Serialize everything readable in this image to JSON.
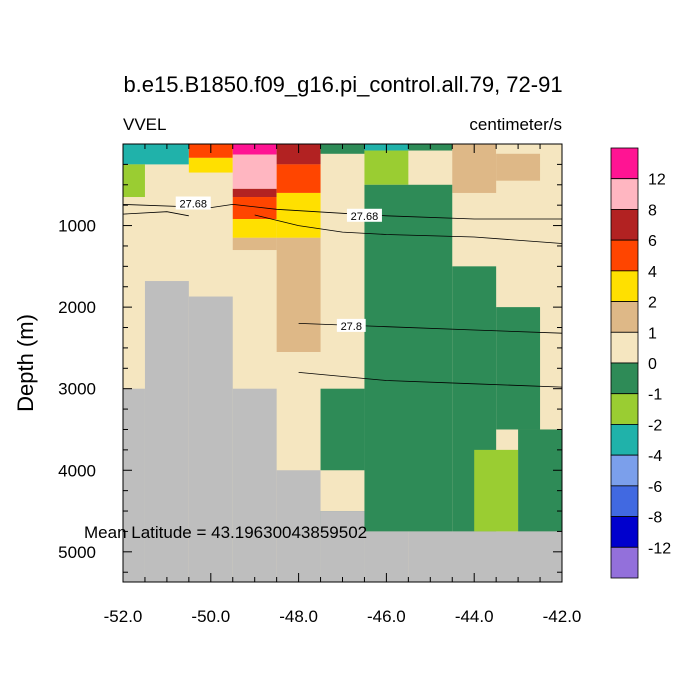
{
  "chart_data": {
    "type": "heatmap",
    "title": "b.e15.B1850.f09_g16.pi_control.all.79, 72-91",
    "left_string": "VVEL",
    "right_string": "centimeter/s",
    "ylabel": "Depth (m)",
    "xlim": [
      -52.0,
      -42.0
    ],
    "ylim_depth": [
      0,
      5370
    ],
    "x_tick_labels": [
      "-52.0",
      "-50.0",
      "-48.0",
      "-46.0",
      "-44.0",
      "-42.0"
    ],
    "x_tick_values": [
      -52,
      -50,
      -48,
      -46,
      -44,
      -42
    ],
    "y_tick_labels": [
      "1000",
      "2000",
      "3000",
      "4000",
      "5000"
    ],
    "y_tick_values": [
      1000,
      2000,
      3000,
      4000,
      5000
    ],
    "annotation": "Mean Latitude = 43.19630043859502",
    "land_color": "#BEBEBE",
    "legend": {
      "levels": [
        "12",
        "8",
        "6",
        "4",
        "2",
        "1",
        "0",
        "-1",
        "-2",
        "-4",
        "-6",
        "-8",
        "-12"
      ],
      "colors": [
        "#FF1493",
        "#FFB6C1",
        "#B22222",
        "#FF4500",
        "#FFE000",
        "#DEB887",
        "#F5E6C0",
        "#2E8B57",
        "#9ACD32",
        "#20B2AA",
        "#7B9FEB",
        "#4169E1",
        "#0000CD",
        "#9370DB"
      ]
    },
    "x_edges": [
      -52.0,
      -51.0,
      -50.0,
      -49.0,
      -48.0,
      -47.0,
      -46.0,
      -45.0,
      -44.0,
      -43.0,
      -42.0
    ],
    "cells": [
      {
        "x": [
          -52.0,
          -50.5
        ],
        "d": [
          0,
          250
        ],
        "c": "#20B2AA"
      },
      {
        "x": [
          -50.5,
          -49.5
        ],
        "d": [
          0,
          170
        ],
        "c": "#FF4500"
      },
      {
        "x": [
          -50.5,
          -49.5
        ],
        "d": [
          170,
          350
        ],
        "c": "#FFE000"
      },
      {
        "x": [
          -49.5,
          -48.5
        ],
        "d": [
          0,
          130
        ],
        "c": "#FF1493"
      },
      {
        "x": [
          -49.5,
          -48.5
        ],
        "d": [
          130,
          550
        ],
        "c": "#FFB6C1"
      },
      {
        "x": [
          -49.5,
          -48.5
        ],
        "d": [
          550,
          650
        ],
        "c": "#B22222"
      },
      {
        "x": [
          -49.5,
          -48.5
        ],
        "d": [
          650,
          920
        ],
        "c": "#FF4500"
      },
      {
        "x": [
          -49.5,
          -48.5
        ],
        "d": [
          920,
          1150
        ],
        "c": "#FFE000"
      },
      {
        "x": [
          -49.5,
          -48.5
        ],
        "d": [
          1150,
          1300
        ],
        "c": "#DEB887"
      },
      {
        "x": [
          -48.5,
          -47.5
        ],
        "d": [
          0,
          250
        ],
        "c": "#B22222"
      },
      {
        "x": [
          -48.5,
          -47.5
        ],
        "d": [
          250,
          600
        ],
        "c": "#FF4500"
      },
      {
        "x": [
          -48.5,
          -47.5
        ],
        "d": [
          600,
          1150
        ],
        "c": "#FFE000"
      },
      {
        "x": [
          -48.5,
          -47.5
        ],
        "d": [
          1150,
          2550
        ],
        "c": "#DEB887"
      },
      {
        "x": [
          -47.5,
          -46.5
        ],
        "d": [
          0,
          120
        ],
        "c": "#2E8B57"
      },
      {
        "x": [
          -46.5,
          -45.5
        ],
        "d": [
          0,
          80
        ],
        "c": "#20B2AA"
      },
      {
        "x": [
          -46.5,
          -45.5
        ],
        "d": [
          80,
          500
        ],
        "c": "#9ACD32"
      },
      {
        "x": [
          -45.5,
          -44.5
        ],
        "d": [
          0,
          80
        ],
        "c": "#2E8B57"
      },
      {
        "x": [
          -44.5,
          -43.5
        ],
        "d": [
          0,
          600
        ],
        "c": "#DEB887"
      },
      {
        "x": [
          -43.5,
          -42.5
        ],
        "d": [
          0,
          120
        ],
        "c": "#F5E6C0"
      },
      {
        "x": [
          -43.5,
          -42.5
        ],
        "d": [
          120,
          450
        ],
        "c": "#DEB887"
      },
      {
        "x": [
          -52.0,
          -51.5
        ],
        "d": [
          250,
          650
        ],
        "c": "#9ACD32"
      },
      {
        "x": [
          -46.5,
          -44.5
        ],
        "d": [
          500,
          4750
        ],
        "c": "#2E8B57"
      },
      {
        "x": [
          -44.5,
          -43.5
        ],
        "d": [
          1500,
          4750
        ],
        "c": "#2E8B57"
      },
      {
        "x": [
          -43.5,
          -42.5
        ],
        "d": [
          2000,
          3500
        ],
        "c": "#2E8B57"
      },
      {
        "x": [
          -47.5,
          -46.5
        ],
        "d": [
          3000,
          4000
        ],
        "c": "#2E8B57"
      },
      {
        "x": [
          -44.0,
          -43.0
        ],
        "d": [
          3750,
          4750
        ],
        "c": "#9ACD32"
      },
      {
        "x": [
          -43.0,
          -42.0
        ],
        "d": [
          3500,
          4750
        ],
        "c": "#2E8B57"
      },
      {
        "x": [
          -47.5,
          -46.5
        ],
        "d": [
          4500,
          4750
        ],
        "c": "#2E8B57"
      }
    ],
    "land": [
      {
        "x": [
          -52.0,
          -51.5
        ],
        "d": [
          3000,
          5370
        ]
      },
      {
        "x": [
          -51.5,
          -50.5
        ],
        "d": [
          1680,
          5370
        ]
      },
      {
        "x": [
          -50.5,
          -49.5
        ],
        "d": [
          1870,
          5370
        ]
      },
      {
        "x": [
          -49.5,
          -48.5
        ],
        "d": [
          3000,
          5370
        ]
      },
      {
        "x": [
          -48.5,
          -47.5
        ],
        "d": [
          4000,
          5370
        ]
      },
      {
        "x": [
          -47.5,
          -46.5
        ],
        "d": [
          4500,
          5370
        ]
      },
      {
        "x": [
          -46.5,
          -45.5
        ],
        "d": [
          4750,
          5370
        ]
      },
      {
        "x": [
          -45.5,
          -42.0
        ],
        "d": [
          4750,
          5370
        ]
      }
    ],
    "contours": [
      {
        "label": "27.68",
        "pts": [
          [
            -52.0,
            740
          ],
          [
            -50.0,
            780
          ],
          [
            -49.5,
            740
          ],
          [
            -48.5,
            800
          ],
          [
            -47.0,
            850
          ],
          [
            -46.0,
            880
          ],
          [
            -44.0,
            920
          ],
          [
            -42.0,
            920
          ]
        ],
        "label_at": [
          -50.4,
          730
        ]
      },
      {
        "label": "27.68",
        "pts": [
          [
            -52.0,
            860
          ],
          [
            -51.0,
            830
          ],
          [
            -50.5,
            880
          ]
        ],
        "label_at": [
          -46.5,
          880
        ]
      },
      {
        "label": "",
        "pts": [
          [
            -49.0,
            870
          ],
          [
            -48.0,
            1000
          ],
          [
            -47.0,
            1080
          ],
          [
            -46.0,
            1110
          ],
          [
            -44.0,
            1140
          ],
          [
            -42.0,
            1220
          ]
        ],
        "label_at": null
      },
      {
        "label": "27.8",
        "pts": [
          [
            -48.0,
            2200
          ],
          [
            -46.0,
            2240
          ],
          [
            -44.0,
            2280
          ],
          [
            -42.0,
            2320
          ]
        ],
        "label_at": [
          -46.8,
          2230
        ]
      },
      {
        "label": "",
        "pts": [
          [
            -48.0,
            2800
          ],
          [
            -46.0,
            2900
          ],
          [
            -44.0,
            2940
          ],
          [
            -42.0,
            2980
          ]
        ],
        "label_at": null
      }
    ]
  }
}
